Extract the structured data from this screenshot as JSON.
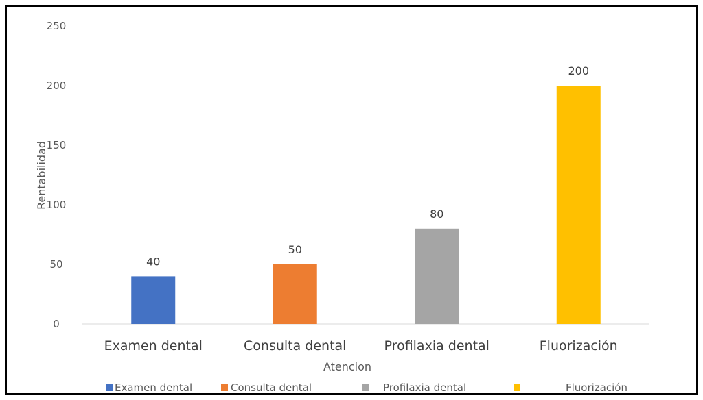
{
  "chart_data": {
    "type": "bar",
    "title": "",
    "xlabel": "Atencion",
    "ylabel": "Rentabilidad",
    "ylim": [
      0,
      250
    ],
    "yticks": [
      0,
      50,
      100,
      150,
      200,
      250
    ],
    "categories": [
      "Examen dental",
      "Consulta dental",
      "Profilaxia dental",
      "Fluorización"
    ],
    "values": [
      40,
      50,
      80,
      200
    ],
    "colors": [
      "#4472C4",
      "#ED7D31",
      "#A5A5A5",
      "#FFC000"
    ],
    "grid": false,
    "legend": {
      "placement": "bottom",
      "entries": [
        "Examen dental",
        "Consulta dental",
        "Profilaxia dental",
        "Fluorización"
      ]
    }
  }
}
